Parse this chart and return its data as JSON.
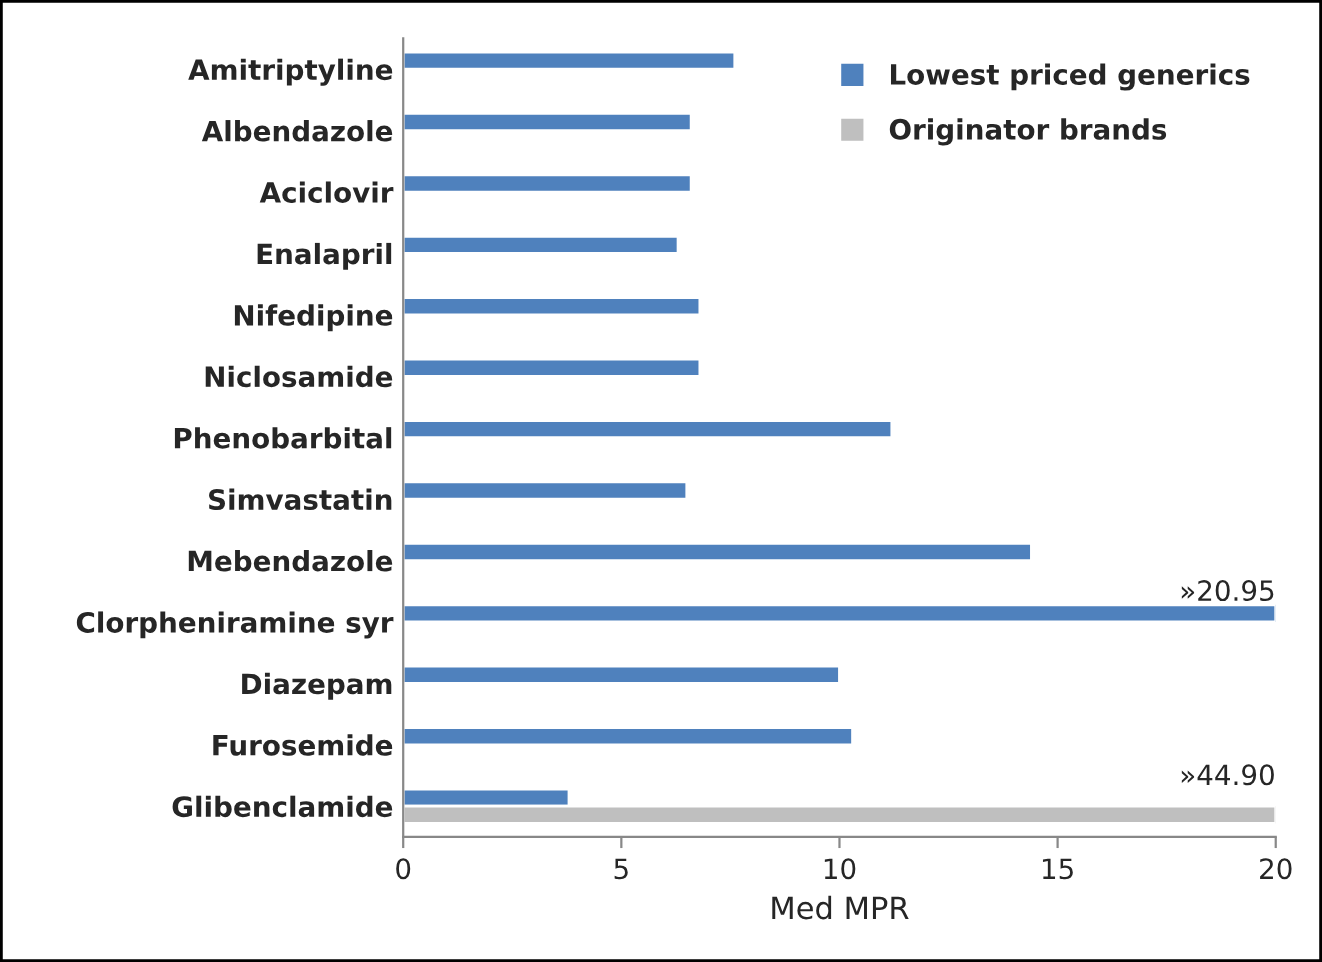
{
  "chart_data": {
    "type": "bar",
    "orientation": "horizontal",
    "xlabel": "Med MPR",
    "categories": [
      "Amitriptyline",
      "Albendazole",
      "Aciclovir",
      "Enalapril",
      "Nifedipine",
      "Niclosamide",
      "Phenobarbital",
      "Simvastatin",
      "Mebendazole",
      "Clorpheniramine syr",
      "Diazepam",
      "Furosemide",
      "Glibenclamide"
    ],
    "series": [
      {
        "name": "Lowest priced generics",
        "color": "#4f81bd",
        "values": [
          7.6,
          6.6,
          6.6,
          6.3,
          6.8,
          6.8,
          11.2,
          6.5,
          14.4,
          20,
          10.0,
          10.3,
          3.8
        ]
      },
      {
        "name": "Originator brands",
        "color": "#bfbfbf",
        "values": [
          null,
          null,
          null,
          null,
          null,
          null,
          null,
          null,
          null,
          null,
          null,
          null,
          20
        ]
      }
    ],
    "annotations": [
      {
        "text": "»20.95",
        "x": 20,
        "y": "Clorpheniramine syr"
      },
      {
        "text": "»44.90",
        "x": 20,
        "y": "Glibenclamide"
      }
    ],
    "xlim": [
      0,
      20
    ],
    "xticks": [
      0,
      5,
      10,
      15,
      20
    ],
    "grid": false,
    "legend": "top right"
  }
}
